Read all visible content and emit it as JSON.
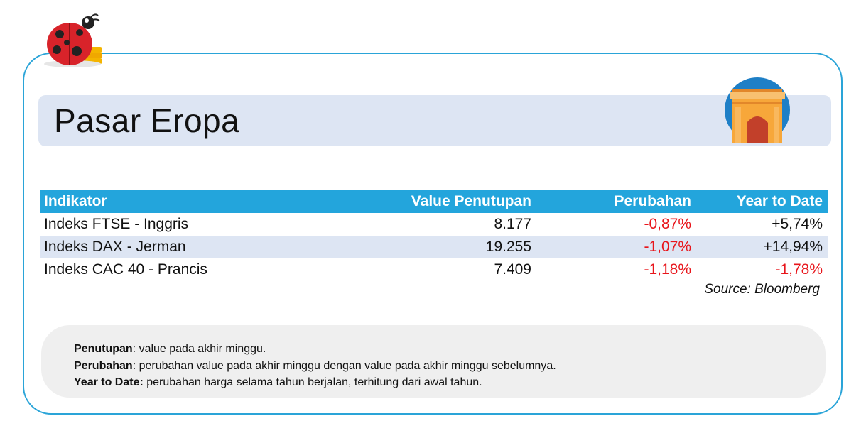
{
  "title": "Pasar Eropa",
  "table": {
    "headers": [
      "Indikator",
      "Value Penutupan",
      "Perubahan",
      "Year to Date"
    ],
    "rows": [
      {
        "indikator": "Indeks FTSE - Inggris",
        "value": "8.177",
        "perubahan": "-0,87%",
        "ytd": "+5,74%"
      },
      {
        "indikator": "Indeks DAX - Jerman",
        "value": "19.255",
        "perubahan": "-1,07%",
        "ytd": "+14,94%"
      },
      {
        "indikator": "Indeks CAC 40 - Prancis",
        "value": "7.409",
        "perubahan": "-1,18%",
        "ytd": "-1,78%"
      }
    ],
    "source": "Source: Bloomberg"
  },
  "notes": [
    {
      "term": "Penutupan",
      "text": ": value pada akhir minggu."
    },
    {
      "term": "Perubahan",
      "text": ": perubahan value pada akhir minggu dengan value pada akhir minggu sebelumnya."
    },
    {
      "term": "Year to Date:",
      "text": " perubahan harga selama tahun berjalan, terhitung dari awal tahun."
    }
  ],
  "colors": {
    "accent": "#23a5dc",
    "negative": "#e8151b",
    "shade": "#dde5f3"
  },
  "icons": [
    "ladybug-icon",
    "arch-icon"
  ]
}
